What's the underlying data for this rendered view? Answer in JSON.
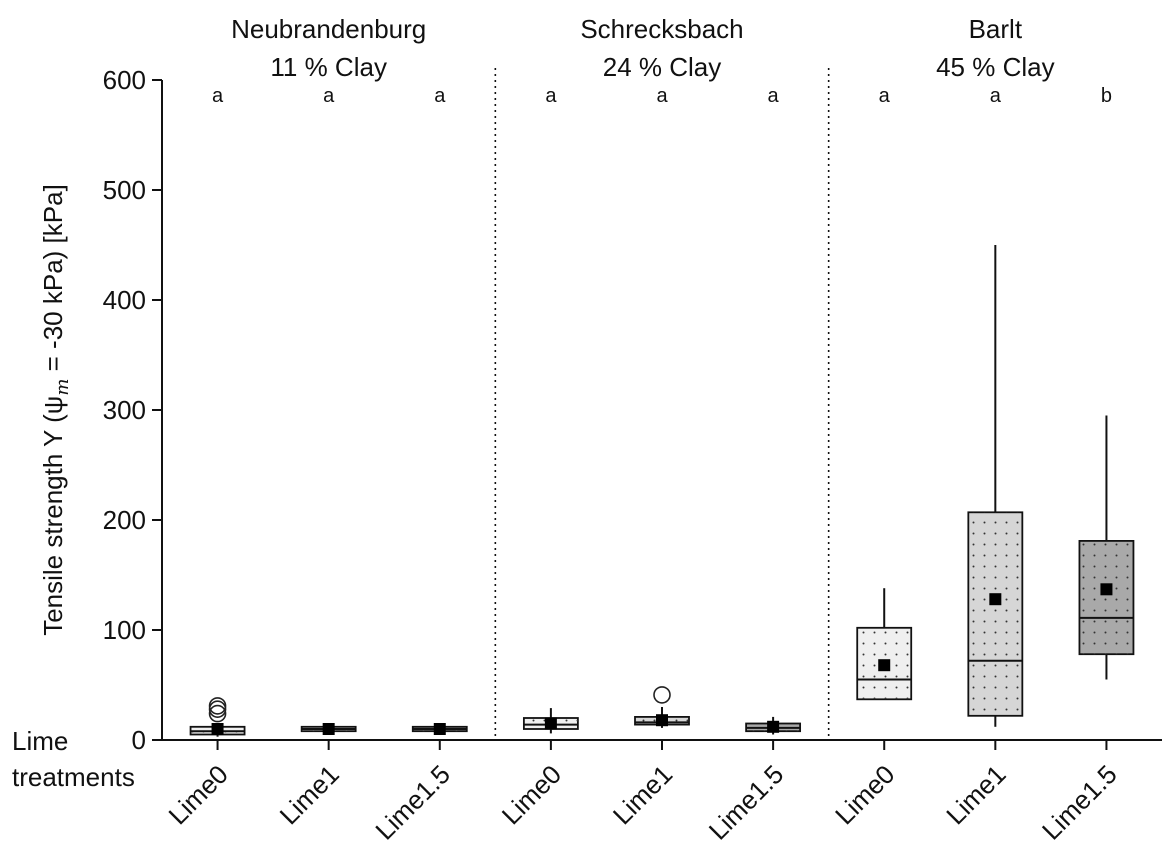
{
  "chart_data": {
    "type": "box",
    "ylabel": "Tensile strength Y (ψ",
    "ylabel_sub": "m",
    "ylabel_tail": " = -30 kPa) [kPa]",
    "ylim": [
      0,
      600
    ],
    "yticks": [
      "0",
      "100",
      "200",
      "300",
      "400",
      "500",
      "600"
    ],
    "x_axis_title_line1": "Lime",
    "x_axis_title_line2": "treatments",
    "grid": false,
    "panels": [
      {
        "site": "Neubrandenburg",
        "clay": "11 % Clay",
        "groups": [
          {
            "label": "Lime0",
            "letter": "a",
            "q1": 5,
            "median": 8,
            "q3": 12,
            "whisker_low": 3,
            "whisker_high": 14,
            "mean": 10,
            "outliers": [
              24,
              28,
              31
            ]
          },
          {
            "label": "Lime1",
            "letter": "a",
            "q1": 8,
            "median": 10,
            "q3": 12,
            "whisker_low": 6,
            "whisker_high": 14,
            "mean": 10,
            "outliers": []
          },
          {
            "label": "Lime1.5",
            "letter": "a",
            "q1": 8,
            "median": 10,
            "q3": 12,
            "whisker_low": 6,
            "whisker_high": 15,
            "mean": 10,
            "outliers": []
          }
        ]
      },
      {
        "site": "Schrecksbach",
        "clay": "24 % Clay",
        "groups": [
          {
            "label": "Lime0",
            "letter": "a",
            "q1": 10,
            "median": 14,
            "q3": 20,
            "whisker_low": 6,
            "whisker_high": 29,
            "mean": 15,
            "outliers": []
          },
          {
            "label": "Lime1",
            "letter": "a",
            "q1": 14,
            "median": 16,
            "q3": 21,
            "whisker_low": 11,
            "whisker_high": 30,
            "mean": 18,
            "outliers": [
              41
            ]
          },
          {
            "label": "Lime1.5",
            "letter": "a",
            "q1": 8,
            "median": 11,
            "q3": 15,
            "whisker_low": 5,
            "whisker_high": 21,
            "mean": 12,
            "outliers": []
          }
        ]
      },
      {
        "site": "Barlt",
        "clay": "45 % Clay",
        "groups": [
          {
            "label": "Lime0",
            "letter": "a",
            "q1": 37,
            "median": 55,
            "q3": 102,
            "whisker_low": 37,
            "whisker_high": 138,
            "mean": 68,
            "outliers": []
          },
          {
            "label": "Lime1",
            "letter": "a",
            "q1": 22,
            "median": 72,
            "q3": 207,
            "whisker_low": 12,
            "whisker_high": 450,
            "mean": 128,
            "outliers": []
          },
          {
            "label": "Lime1.5",
            "letter": "b",
            "q1": 78,
            "median": 111,
            "q3": 181,
            "whisker_low": 55,
            "whisker_high": 295,
            "mean": 137,
            "outliers": []
          }
        ]
      }
    ],
    "box_fill_colors": [
      "#efefef",
      "#d6d6d6",
      "#a9a9a9"
    ]
  }
}
